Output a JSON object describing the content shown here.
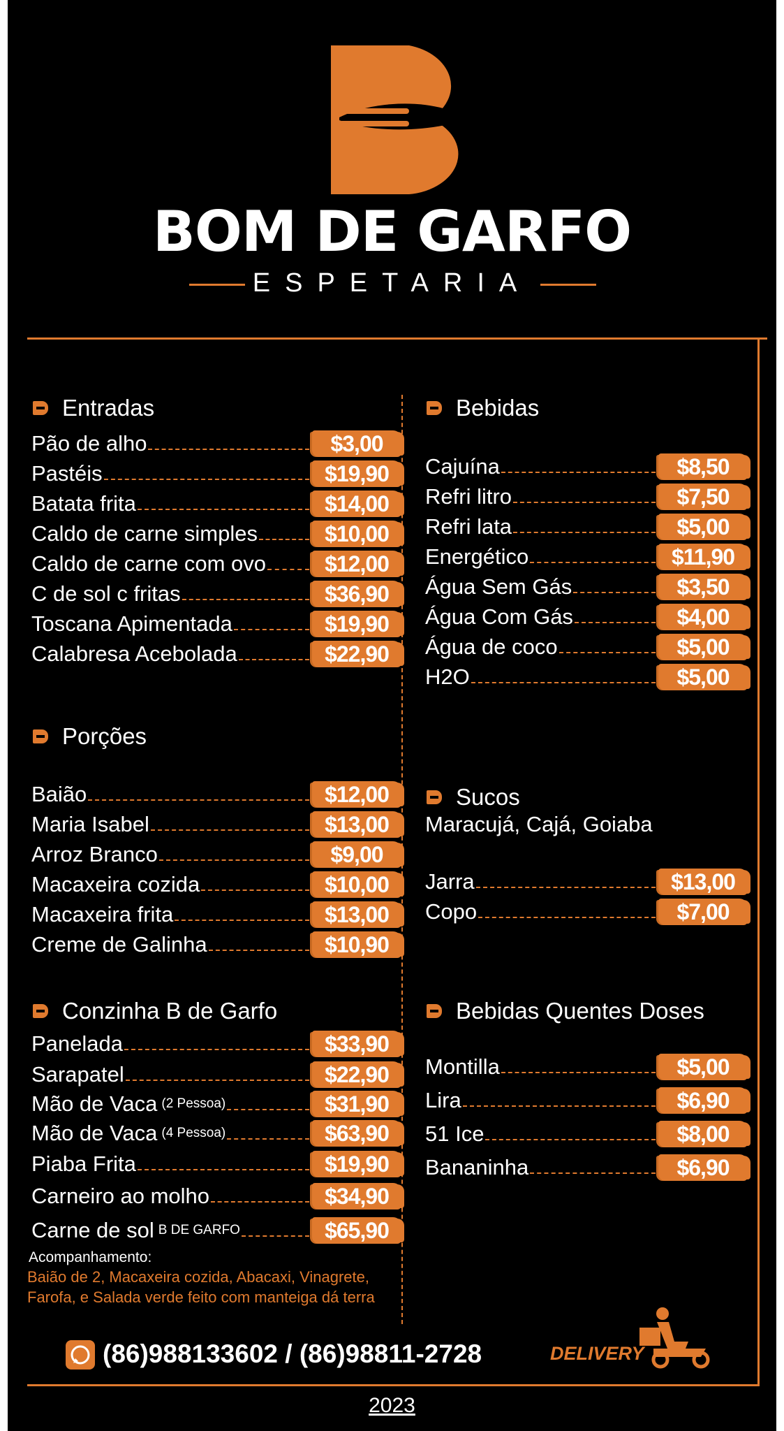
{
  "header": {
    "title": "BOM DE GARFO",
    "subtitle": "ESPETARIA"
  },
  "sections": [
    {
      "title": "Entradas",
      "items": [
        {
          "name": "Pão de alho",
          "price": "$3,00"
        },
        {
          "name": "Pastéis",
          "price": "$19,90"
        },
        {
          "name": "Batata frita",
          "price": "$14,00"
        },
        {
          "name": "Caldo de carne simples",
          "price": "$10,00"
        },
        {
          "name": "Caldo de carne com ovo",
          "price": "$12,00"
        },
        {
          "name": "C de sol c fritas",
          "price": "$36,90"
        },
        {
          "name": "Toscana Apimentada",
          "price": "$19,90"
        },
        {
          "name": "Calabresa Acebolada",
          "price": "$22,90"
        }
      ]
    },
    {
      "title": "Porções",
      "items": [
        {
          "name": "Baião",
          "price": "$12,00"
        },
        {
          "name": "Maria Isabel",
          "price": "$13,00"
        },
        {
          "name": "Arroz Branco",
          "price": "$9,00"
        },
        {
          "name": "Macaxeira cozida",
          "price": "$10,00"
        },
        {
          "name": "Macaxeira frita",
          "price": "$13,00"
        },
        {
          "name": "Creme de Galinha",
          "price": "$10,90"
        }
      ]
    },
    {
      "title": "Conzinha B de Garfo",
      "items": [
        {
          "name": "Panelada",
          "price": "$33,90"
        },
        {
          "name": "Sarapatel",
          "price": "$22,90"
        },
        {
          "name": "Mão de Vaca",
          "note": "(2 Pessoa)",
          "price": "$31,90"
        },
        {
          "name": "Mão de Vaca",
          "note": "(4 Pessoa)",
          "price": "$63,90"
        },
        {
          "name": "Piaba Frita",
          "price": "$19,90"
        },
        {
          "name": "Carneiro ao molho",
          "price": "$34,90"
        },
        {
          "name": "Carne de sol",
          "note": "B DE GARFO",
          "price": "$65,90"
        }
      ],
      "accompaniment": {
        "label": "Acompanhamento:",
        "text": "Baião de 2, Macaxeira cozida, Abacaxi, Vinagrete, Farofa, e Salada verde feito com manteiga dá terra"
      }
    },
    {
      "title": "Bebidas",
      "items": [
        {
          "name": "Cajuína",
          "price": "$8,50"
        },
        {
          "name": "Refri litro",
          "price": "$7,50"
        },
        {
          "name": "Refri lata",
          "price": "$5,00"
        },
        {
          "name": "Energético",
          "price": "$11,90"
        },
        {
          "name": "Água Sem Gás",
          "price": "$3,50"
        },
        {
          "name": "Água Com Gás",
          "price": "$4,00"
        },
        {
          "name": "Água de coco",
          "price": "$5,00"
        },
        {
          "name": "H2O",
          "price": "$5,00"
        }
      ]
    },
    {
      "title": "Sucos",
      "subtitle": "Maracujá, Cajá, Goiaba",
      "items": [
        {
          "name": "Jarra",
          "price": "$13,00"
        },
        {
          "name": "Copo",
          "price": "$7,00"
        }
      ]
    },
    {
      "title": "Bebidas Quentes Doses",
      "items": [
        {
          "name": "Montilla",
          "price": "$5,00"
        },
        {
          "name": "Lira",
          "price": "$6,90"
        },
        {
          "name": "51 Ice",
          "price": "$8,00"
        },
        {
          "name": "Bananinha",
          "price": "$6,90"
        }
      ]
    }
  ],
  "footer": {
    "phone": "(86)988133602 / (86)98811-2728",
    "delivery": "DELIVERY",
    "year": "2023"
  }
}
